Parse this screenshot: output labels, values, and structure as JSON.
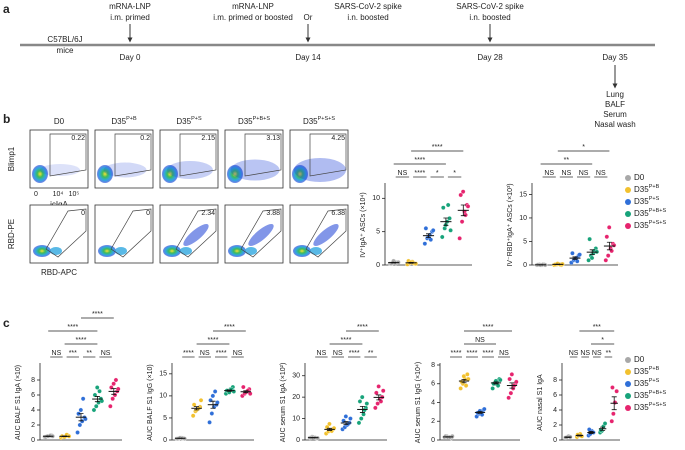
{
  "panel_labels": [
    "a",
    "b",
    "c"
  ],
  "timeline": {
    "mice": [
      "C57BL/6J",
      "mice"
    ],
    "events": [
      {
        "day": "Day 0",
        "notes": [
          "mRNA-LNP",
          "i.m. primed"
        ]
      },
      {
        "day": "Day 14",
        "notes": [
          "mRNA-LNP",
          "i.m. primed or boosted"
        ],
        "alt": "Or",
        "alt_notes": [
          "SARS-CoV-2 spike",
          "i.n. boosted"
        ]
      },
      {
        "day": "Day 28",
        "notes": [
          "SARS-CoV-2 spike",
          "i.n. boosted"
        ]
      },
      {
        "day": "Day 35",
        "samples": [
          "Lung",
          "BALF",
          "Serum",
          "Nasal wash"
        ]
      }
    ]
  },
  "groups": [
    {
      "name": "D0",
      "color": "#a8a8a8"
    },
    {
      "name": "D35",
      "sup": "P+B",
      "color": "#f2c12e"
    },
    {
      "name": "D35",
      "sup": "P+S",
      "color": "#2f6fd8"
    },
    {
      "name": "D35",
      "sup": "P+B+S",
      "color": "#17a37a"
    },
    {
      "name": "D35",
      "sup": "P+S+S",
      "color": "#e6246e"
    }
  ],
  "flow": {
    "rows": [
      {
        "ylabel": "Blimp1",
        "xlabel": "icIgA",
        "gates": [
          0.22,
          0.2,
          2.15,
          3.13,
          4.25
        ]
      },
      {
        "ylabel": "RBD-PE",
        "xlabel": "RBD-APC",
        "gates": [
          0,
          0,
          2.34,
          3.88,
          6.38
        ]
      }
    ],
    "xticks": [
      "0",
      "10⁴",
      "10⁵"
    ]
  },
  "chart_data": [
    {
      "type": "dot",
      "ylabel": "IV⁺IgA⁺ ASCs (×10⁴)",
      "ylim": [
        0,
        12
      ],
      "yticks": [
        0,
        5,
        10
      ],
      "groups": [
        {
          "values": [
            0.2,
            0.3,
            0.5,
            0.4,
            0.2,
            0.6,
            0.3,
            0.4
          ],
          "mean": 0.36,
          "sem": 0.05
        },
        {
          "values": [
            0.1,
            0.3,
            0.5,
            0.2,
            0.6,
            0.4,
            0.3,
            0.2
          ],
          "mean": 0.33,
          "sem": 0.06
        },
        {
          "values": [
            3.2,
            4.0,
            4.5,
            5.0,
            5.5,
            4.2,
            3.8,
            5.2
          ],
          "mean": 4.4,
          "sem": 0.28
        },
        {
          "values": [
            4.2,
            5.5,
            6.5,
            7.0,
            8.6,
            6.0,
            9.0,
            5.2
          ],
          "mean": 6.5,
          "sem": 0.55
        },
        {
          "values": [
            4.0,
            6.5,
            8.0,
            9.0,
            10.5,
            11.0,
            7.5,
            8.8
          ],
          "mean": 8.2,
          "sem": 0.8
        }
      ],
      "significance": [
        {
          "pair": [
            0,
            1
          ],
          "label": "NS"
        },
        {
          "pair": [
            1,
            2
          ],
          "label": "****"
        },
        {
          "pair": [
            2,
            3
          ],
          "label": "*"
        },
        {
          "pair": [
            3,
            4
          ],
          "label": "*"
        },
        {
          "pair": [
            0,
            3
          ],
          "label": "****"
        },
        {
          "pair": [
            1,
            4
          ],
          "label": "****"
        }
      ]
    },
    {
      "type": "dot",
      "ylabel": "IV⁻RBD⁺IgA⁺ ASCs (×10³)",
      "ylim": [
        0,
        17
      ],
      "yticks": [
        0,
        5,
        10,
        15
      ],
      "groups": [
        {
          "values": [
            0,
            0.1,
            0,
            0.1,
            0.05,
            0,
            0.1,
            0
          ],
          "mean": 0.04,
          "sem": 0.02
        },
        {
          "values": [
            0,
            0.1,
            0.2,
            0,
            0.1,
            0.3,
            0.1,
            0.2
          ],
          "mean": 0.13,
          "sem": 0.04
        },
        {
          "values": [
            0.5,
            1.0,
            1.5,
            2.0,
            2.5,
            1.2,
            0.8,
            2.2
          ],
          "mean": 1.46,
          "sem": 0.25
        },
        {
          "values": [
            1.0,
            2.0,
            2.5,
            3.5,
            5.5,
            1.5,
            3.0,
            2.8
          ],
          "mean": 2.73,
          "sem": 0.5
        },
        {
          "values": [
            1.0,
            2.0,
            3.5,
            4.5,
            6.0,
            8.0,
            3.0,
            4.2
          ],
          "mean": 4.03,
          "sem": 0.8
        }
      ],
      "significance": [
        {
          "pair": [
            0,
            1
          ],
          "label": "NS"
        },
        {
          "pair": [
            1,
            2
          ],
          "label": "NS"
        },
        {
          "pair": [
            2,
            3
          ],
          "label": "NS"
        },
        {
          "pair": [
            3,
            4
          ],
          "label": "NS"
        },
        {
          "pair": [
            0,
            3
          ],
          "label": "**"
        },
        {
          "pair": [
            1,
            4
          ],
          "label": "*"
        }
      ]
    },
    {
      "type": "dot",
      "ylabel": "AUC BALF S1 IgA (×10)",
      "ylim": [
        0,
        10
      ],
      "yticks": [
        0,
        2,
        4,
        6,
        8
      ],
      "groups": [
        {
          "values": [
            0.4,
            0.5,
            0.5,
            0.6,
            0.4,
            0.5,
            0.6,
            0.5
          ],
          "mean": 0.5,
          "sem": 0.03
        },
        {
          "values": [
            0.3,
            0.4,
            0.5,
            0.6,
            0.5,
            0.4,
            0.7,
            0.5
          ],
          "mean": 0.49,
          "sem": 0.04
        },
        {
          "values": [
            1.0,
            2.0,
            2.5,
            3.0,
            3.5,
            4.0,
            5.5,
            2.8
          ],
          "mean": 3.04,
          "sem": 0.48
        },
        {
          "values": [
            4.0,
            4.5,
            5.0,
            5.5,
            6.0,
            7.0,
            6.5,
            5.2
          ],
          "mean": 5.46,
          "sem": 0.35
        },
        {
          "values": [
            4.5,
            5.5,
            6.0,
            6.5,
            7.0,
            7.5,
            8.0,
            6.8
          ],
          "mean": 6.48,
          "sem": 0.39
        }
      ],
      "significance": [
        {
          "pair": [
            0,
            1
          ],
          "label": "NS"
        },
        {
          "pair": [
            1,
            2
          ],
          "label": "***"
        },
        {
          "pair": [
            2,
            3
          ],
          "label": "**"
        },
        {
          "pair": [
            3,
            4
          ],
          "label": "NS"
        },
        {
          "pair": [
            1,
            3
          ],
          "label": "****"
        },
        {
          "pair": [
            0,
            3
          ],
          "label": "****"
        },
        {
          "pair": [
            2,
            4
          ],
          "label": "****"
        }
      ]
    },
    {
      "type": "dot",
      "ylabel": "AUC BALF S1 IgG (×10)",
      "ylim": [
        0,
        17
      ],
      "yticks": [
        0,
        5,
        10,
        15
      ],
      "groups": [
        {
          "values": [
            0.3,
            0.4,
            0.5,
            0.4,
            0.3,
            0.5,
            0.4,
            0.3
          ],
          "mean": 0.39,
          "sem": 0.03
        },
        {
          "values": [
            5.5,
            6.5,
            7.0,
            7.5,
            8.0,
            6.8,
            7.2,
            9.0
          ],
          "mean": 7.19,
          "sem": 0.37
        },
        {
          "values": [
            4.0,
            6.0,
            7.5,
            8.0,
            9.0,
            10.0,
            11.0,
            8.5
          ],
          "mean": 8.0,
          "sem": 0.8
        },
        {
          "values": [
            10.5,
            11.0,
            11.5,
            12.0,
            11.2,
            10.8,
            11.5,
            11.0
          ],
          "mean": 11.19,
          "sem": 0.16
        },
        {
          "values": [
            10.0,
            10.5,
            11.0,
            11.5,
            12.0,
            10.8,
            11.2,
            10.5
          ],
          "mean": 10.94,
          "sem": 0.22
        }
      ],
      "significance": [
        {
          "pair": [
            0,
            1
          ],
          "label": "****"
        },
        {
          "pair": [
            1,
            2
          ],
          "label": "NS"
        },
        {
          "pair": [
            2,
            3
          ],
          "label": "****"
        },
        {
          "pair": [
            3,
            4
          ],
          "label": "NS"
        },
        {
          "pair": [
            1,
            3
          ],
          "label": "****"
        },
        {
          "pair": [
            2,
            4
          ],
          "label": "****"
        }
      ]
    },
    {
      "type": "dot",
      "ylabel": "AUC serum S1 IgA (×10²)",
      "ylim": [
        0,
        35
      ],
      "yticks": [
        0,
        10,
        20,
        30
      ],
      "groups": [
        {
          "values": [
            1.0,
            1.5,
            1.2,
            0.8,
            1.0,
            1.3,
            1.1,
            0.9
          ],
          "mean": 1.1,
          "sem": 0.08
        },
        {
          "values": [
            3.0,
            4.0,
            4.5,
            5.0,
            6.0,
            7.5,
            4.2,
            5.5
          ],
          "mean": 4.96,
          "sem": 0.49
        },
        {
          "values": [
            5.0,
            6.0,
            7.0,
            8.0,
            9.0,
            11.0,
            7.5,
            10.0
          ],
          "mean": 7.94,
          "sem": 0.71
        },
        {
          "values": [
            8.0,
            10.0,
            12.0,
            15.0,
            18.0,
            20.0,
            14.0,
            17.0
          ],
          "mean": 14.25,
          "sem": 1.45
        },
        {
          "values": [
            15.0,
            17.0,
            19.0,
            20.0,
            22.0,
            25.0,
            18.0,
            23.0
          ],
          "mean": 19.88,
          "sem": 1.15
        }
      ],
      "significance": [
        {
          "pair": [
            0,
            1
          ],
          "label": "NS"
        },
        {
          "pair": [
            1,
            2
          ],
          "label": "NS"
        },
        {
          "pair": [
            2,
            3
          ],
          "label": "****"
        },
        {
          "pair": [
            3,
            4
          ],
          "label": "**"
        },
        {
          "pair": [
            1,
            3
          ],
          "label": "****"
        },
        {
          "pair": [
            2,
            4
          ],
          "label": "****"
        }
      ]
    },
    {
      "type": "dot",
      "ylabel": "AUC serum S1 IgG (×10⁴)",
      "ylim": [
        0,
        8
      ],
      "yticks": [
        0,
        2,
        4,
        6,
        8
      ],
      "groups": [
        {
          "values": [
            0.3,
            0.4,
            0.3,
            0.2,
            0.4,
            0.3,
            0.3,
            0.4
          ],
          "mean": 0.33,
          "sem": 0.02
        },
        {
          "values": [
            5.5,
            6.0,
            6.5,
            7.0,
            6.2,
            6.8,
            5.8,
            6.5
          ],
          "mean": 6.29,
          "sem": 0.18
        },
        {
          "values": [
            2.5,
            2.8,
            3.0,
            3.2,
            2.9,
            3.1,
            2.7,
            3.3
          ],
          "mean": 2.94,
          "sem": 0.1
        },
        {
          "values": [
            5.5,
            6.0,
            6.2,
            6.5,
            6.0,
            6.3,
            5.8,
            6.4
          ],
          "mean": 6.09,
          "sem": 0.11
        },
        {
          "values": [
            4.5,
            5.0,
            5.5,
            6.0,
            6.5,
            7.0,
            5.8,
            6.2
          ],
          "mean": 5.81,
          "sem": 0.28
        }
      ],
      "significance": [
        {
          "pair": [
            0,
            1
          ],
          "label": "****"
        },
        {
          "pair": [
            1,
            2
          ],
          "label": "****"
        },
        {
          "pair": [
            2,
            3
          ],
          "label": "****"
        },
        {
          "pair": [
            3,
            4
          ],
          "label": "NS"
        },
        {
          "pair": [
            1,
            3
          ],
          "label": "NS"
        },
        {
          "pair": [
            1,
            4
          ],
          "label": "****"
        }
      ]
    },
    {
      "type": "dot",
      "ylabel": "AUC nasal S1 IgA",
      "ylim": [
        0,
        10
      ],
      "yticks": [
        0,
        2,
        4,
        6,
        8
      ],
      "groups": [
        {
          "values": [
            0.3,
            0.4,
            0.5,
            0.4,
            0.3
          ],
          "mean": 0.38,
          "sem": 0.04
        },
        {
          "values": [
            0.4,
            0.6,
            0.8,
            0.5,
            0.7
          ],
          "mean": 0.6,
          "sem": 0.07
        },
        {
          "values": [
            0.6,
            0.8,
            1.2,
            1.0,
            1.4
          ],
          "mean": 1.0,
          "sem": 0.14
        },
        {
          "values": [
            1.0,
            1.2,
            1.8,
            2.2,
            1.3
          ],
          "mean": 1.5,
          "sem": 0.22
        },
        {
          "values": [
            2.5,
            3.5,
            5.0,
            6.5,
            7.0
          ],
          "mean": 4.9,
          "sem": 0.86
        }
      ],
      "significance": [
        {
          "pair": [
            0,
            1
          ],
          "label": "NS"
        },
        {
          "pair": [
            1,
            2
          ],
          "label": "NS"
        },
        {
          "pair": [
            2,
            3
          ],
          "label": "NS"
        },
        {
          "pair": [
            3,
            4
          ],
          "label": "**"
        },
        {
          "pair": [
            2,
            4
          ],
          "label": "*"
        },
        {
          "pair": [
            1,
            4
          ],
          "label": "***"
        }
      ]
    }
  ]
}
